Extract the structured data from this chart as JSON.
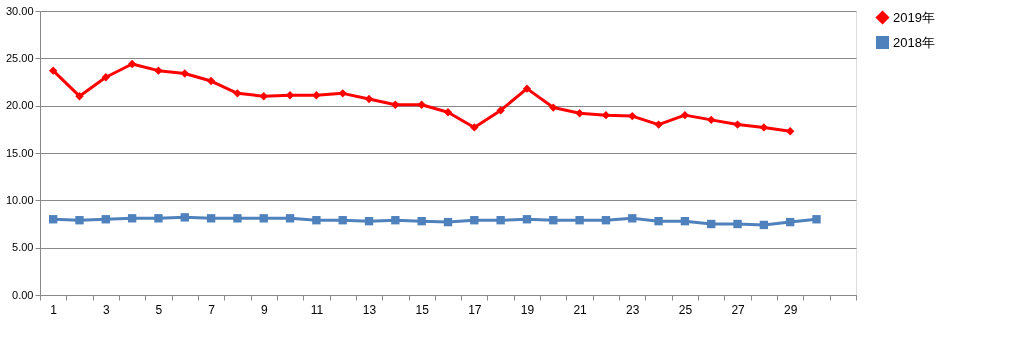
{
  "chart_data": {
    "type": "line",
    "x": [
      1,
      2,
      3,
      4,
      5,
      6,
      7,
      8,
      9,
      10,
      11,
      12,
      13,
      14,
      15,
      16,
      17,
      18,
      19,
      20,
      21,
      22,
      23,
      24,
      25,
      26,
      27,
      28,
      29,
      30
    ],
    "xlim": [
      0.5,
      31.5
    ],
    "xticks": [
      1,
      3,
      5,
      7,
      9,
      11,
      13,
      15,
      17,
      19,
      21,
      23,
      25,
      27,
      29,
      {
        "value": 0.5,
        "label": null
      },
      {
        "value": 1.5,
        "label": null
      },
      {
        "value": 2.5,
        "label": null
      },
      {
        "value": 3.5,
        "label": null
      },
      {
        "value": 4.5,
        "label": null
      },
      {
        "value": 5.5,
        "label": null
      },
      {
        "value": 6.5,
        "label": null
      },
      {
        "value": 7.5,
        "label": null
      },
      {
        "value": 8.5,
        "label": null
      },
      {
        "value": 9.5,
        "label": null
      },
      {
        "value": 10.5,
        "label": null
      },
      {
        "value": 11.5,
        "label": null
      },
      {
        "value": 12.5,
        "label": null
      },
      {
        "value": 13.5,
        "label": null
      },
      {
        "value": 14.5,
        "label": null
      },
      {
        "value": 15.5,
        "label": null
      },
      {
        "value": 16.5,
        "label": null
      },
      {
        "value": 17.5,
        "label": null
      },
      {
        "value": 18.5,
        "label": null
      },
      {
        "value": 19.5,
        "label": null
      },
      {
        "value": 20.5,
        "label": null
      },
      {
        "value": 21.5,
        "label": null
      },
      {
        "value": 22.5,
        "label": null
      },
      {
        "value": 23.5,
        "label": null
      },
      {
        "value": 24.5,
        "label": null
      },
      {
        "value": 25.5,
        "label": null
      },
      {
        "value": 26.5,
        "label": null
      },
      {
        "value": 27.5,
        "label": null
      },
      {
        "value": 28.5,
        "label": null
      },
      {
        "value": 29.5,
        "label": null
      },
      {
        "value": 30.5,
        "label": null
      },
      {
        "value": 31.5,
        "label": null
      }
    ],
    "series": [
      {
        "name": "2019年",
        "color": "#ff0000",
        "marker": "diamond",
        "values": [
          23.7,
          21.0,
          23.0,
          24.4,
          23.7,
          23.4,
          22.6,
          21.3,
          21.0,
          21.1,
          21.1,
          21.3,
          20.7,
          20.1,
          20.1,
          19.3,
          17.7,
          19.5,
          21.8,
          19.8,
          19.2,
          19.0,
          18.9,
          18.0,
          19.0,
          18.5,
          18.0,
          17.7,
          17.3,
          null
        ]
      },
      {
        "name": "2018年",
        "color": "#4f81bd",
        "marker": "square",
        "values": [
          8.0,
          7.9,
          8.0,
          8.1,
          8.1,
          8.2,
          8.1,
          8.1,
          8.1,
          8.1,
          7.9,
          7.9,
          7.8,
          7.9,
          7.8,
          7.7,
          7.9,
          7.9,
          8.0,
          7.9,
          7.9,
          7.9,
          8.1,
          7.8,
          7.8,
          7.5,
          7.5,
          7.4,
          7.7,
          8.0
        ]
      }
    ],
    "ylim": [
      0,
      30
    ],
    "yticks": [
      {
        "value": 0,
        "label": "0.00"
      },
      {
        "value": 5,
        "label": "5.00"
      },
      {
        "value": 10,
        "label": "10.00"
      },
      {
        "value": 15,
        "label": "15.00"
      },
      {
        "value": 20,
        "label": "20.00"
      },
      {
        "value": 25,
        "label": "25.00"
      },
      {
        "value": 30,
        "label": "30.00"
      }
    ],
    "grid": "y",
    "legend": "right",
    "line_style": "solid"
  }
}
